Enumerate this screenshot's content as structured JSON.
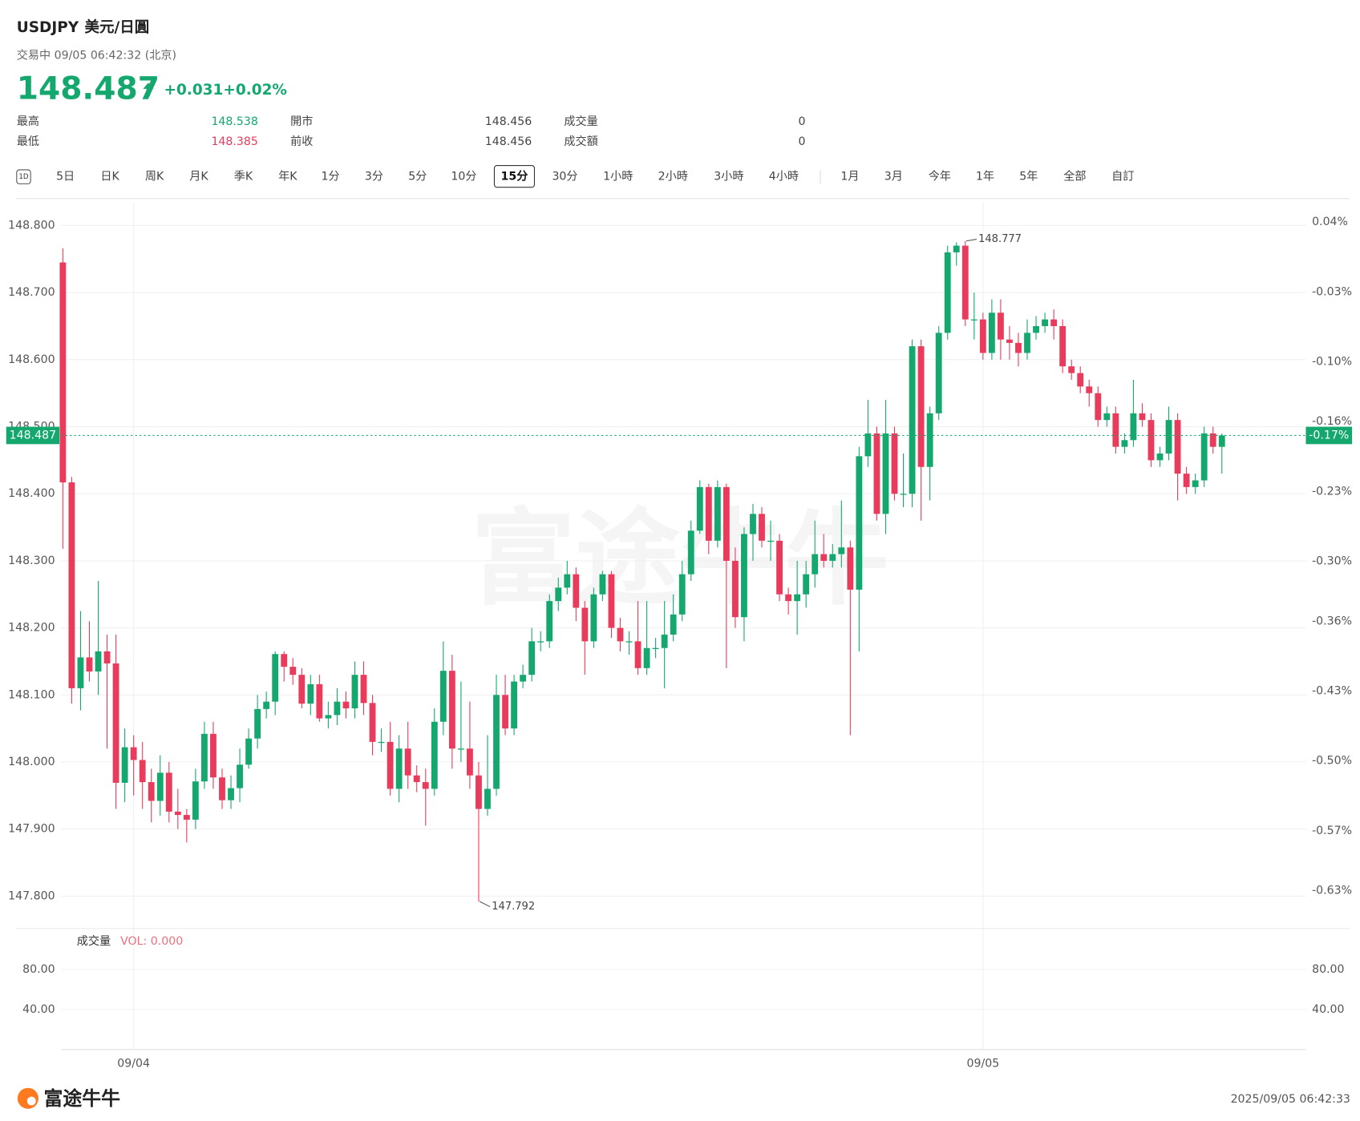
{
  "header": {
    "symbol": "USDJPY",
    "name": "美元/日圓",
    "status": "交易中 09/05 06:42:32 (北京)",
    "price": "148.487",
    "change": "+0.031",
    "change_pct": "+0.02%",
    "stats": [
      [
        {
          "label": "最高",
          "value": "148.538",
          "color": "#14a86f"
        },
        {
          "label": "開市",
          "value": "148.456"
        },
        {
          "label": "成交量",
          "value": "0"
        }
      ],
      [
        {
          "label": "最低",
          "value": "148.385",
          "color": "#e93b5b"
        },
        {
          "label": "前收",
          "value": "148.456"
        },
        {
          "label": "成交額",
          "value": "0"
        }
      ]
    ],
    "tabs": [
      "1D",
      "5日",
      "日K",
      "周K",
      "月K",
      "季K",
      "年K",
      "1分",
      "3分",
      "5分",
      "10分",
      "15分",
      "30分",
      "1小時",
      "2小時",
      "3小時",
      "4小時",
      "1月",
      "3月",
      "今年",
      "1年",
      "5年",
      "全部",
      "自訂"
    ],
    "selected_tab": 11,
    "watermark": "富途牛牛"
  },
  "chart_data": {
    "type": "candlestick",
    "up_color": "#14a86f",
    "down_color": "#e93b5b",
    "categories": [
      null,
      null,
      null,
      null,
      null,
      null,
      null,
      null,
      "09/04",
      null,
      null,
      null,
      null,
      null,
      null,
      null,
      null,
      null,
      null,
      null,
      null,
      null,
      null,
      null,
      null,
      null,
      null,
      null,
      null,
      null,
      null,
      null,
      null,
      null,
      null,
      null,
      null,
      null,
      null,
      null,
      null,
      null,
      null,
      null,
      null,
      null,
      null,
      null,
      null,
      null,
      null,
      null,
      null,
      null,
      null,
      null,
      null,
      null,
      null,
      null,
      null,
      null,
      null,
      null,
      null,
      null,
      null,
      null,
      null,
      null,
      null,
      null,
      null,
      null,
      null,
      null,
      null,
      null,
      null,
      null,
      null,
      null,
      null,
      null,
      null,
      null,
      null,
      null,
      null,
      null,
      null,
      null,
      null,
      null,
      null,
      null,
      null,
      null,
      null,
      null,
      null,
      null,
      null,
      null,
      "09/05",
      null,
      null,
      null,
      null,
      null,
      null,
      null,
      null,
      null,
      null,
      null,
      null,
      null,
      null,
      null,
      null,
      null,
      null,
      null,
      null,
      null,
      null,
      null,
      null,
      null,
      null,
      null
    ],
    "open": [
      148.745,
      148.417,
      148.11,
      148.156,
      148.135,
      148.165,
      148.147,
      147.969,
      148.022,
      148.003,
      147.97,
      147.942,
      147.984,
      147.926,
      147.921,
      147.914,
      147.971,
      148.042,
      147.977,
      147.943,
      147.961,
      147.996,
      148.035,
      148.079,
      148.09,
      148.161,
      148.142,
      148.13,
      148.087,
      148.116,
      148.065,
      148.07,
      148.09,
      148.08,
      148.13,
      148.088,
      148.03,
      148.03,
      147.96,
      148.02,
      147.98,
      147.97,
      147.96,
      148.06,
      148.136,
      148.02,
      148.02,
      147.98,
      147.93,
      147.96,
      148.1,
      148.05,
      148.12,
      148.13,
      148.18,
      148.18,
      148.24,
      148.26,
      148.28,
      148.23,
      148.18,
      148.25,
      148.28,
      148.2,
      148.18,
      148.18,
      148.14,
      148.17,
      148.17,
      148.19,
      148.22,
      148.28,
      148.345,
      148.41,
      148.33,
      148.41,
      148.3,
      148.216,
      148.34,
      148.37,
      148.33,
      148.33,
      148.25,
      148.24,
      148.25,
      148.28,
      148.31,
      148.3,
      148.31,
      148.32,
      148.257,
      148.456,
      148.49,
      148.37,
      148.49,
      148.4,
      148.4,
      148.62,
      148.44,
      148.52,
      148.64,
      148.76,
      148.77,
      148.66,
      148.66,
      148.61,
      148.67,
      148.63,
      148.625,
      148.61,
      148.64,
      148.65,
      148.66,
      148.65,
      148.59,
      148.58,
      148.56,
      148.55,
      148.51,
      148.52,
      148.47,
      148.48,
      148.52,
      148.51,
      148.45,
      148.46,
      148.51,
      148.43,
      148.41,
      148.42,
      148.49,
      148.47
    ],
    "high": [
      148.766,
      148.425,
      148.225,
      148.21,
      148.27,
      148.19,
      148.19,
      148.05,
      148.04,
      148.03,
      147.99,
      148.01,
      148.0,
      147.96,
      147.93,
      147.99,
      148.06,
      148.06,
      147.99,
      147.98,
      148.02,
      148.05,
      148.1,
      148.105,
      148.165,
      148.165,
      148.155,
      148.14,
      148.13,
      148.13,
      148.09,
      148.11,
      148.105,
      148.15,
      148.15,
      148.1,
      148.05,
      148.06,
      148.04,
      148.06,
      147.995,
      147.99,
      148.08,
      148.18,
      148.16,
      148.12,
      148.09,
      148.0,
      148.04,
      148.13,
      148.13,
      148.13,
      148.145,
      148.2,
      148.195,
      148.25,
      148.275,
      148.3,
      148.29,
      148.24,
      148.26,
      148.285,
      148.285,
      148.215,
      148.195,
      148.24,
      148.24,
      148.185,
      148.24,
      148.25,
      148.3,
      148.36,
      148.42,
      148.415,
      148.42,
      148.415,
      148.32,
      148.35,
      148.385,
      148.38,
      148.36,
      148.34,
      148.26,
      148.3,
      148.3,
      148.36,
      148.34,
      148.325,
      148.39,
      148.33,
      148.47,
      148.54,
      148.5,
      148.54,
      148.5,
      148.46,
      148.63,
      148.63,
      148.53,
      148.65,
      148.77,
      148.775,
      148.777,
      148.7,
      148.67,
      148.69,
      148.69,
      148.65,
      148.64,
      148.66,
      148.665,
      148.67,
      148.675,
      148.66,
      148.6,
      148.59,
      148.57,
      148.56,
      148.53,
      148.53,
      148.49,
      148.57,
      148.535,
      148.52,
      148.47,
      148.53,
      148.52,
      148.44,
      148.43,
      148.5,
      148.5,
      148.49
    ],
    "low": [
      148.318,
      148.087,
      148.077,
      148.12,
      148.1,
      148.02,
      147.93,
      147.94,
      147.95,
      147.93,
      147.91,
      147.92,
      147.91,
      147.9,
      147.88,
      147.9,
      147.96,
      147.96,
      147.93,
      147.93,
      147.94,
      147.99,
      148.02,
      148.065,
      148.07,
      148.12,
      148.115,
      148.08,
      148.07,
      148.06,
      148.05,
      148.055,
      148.065,
      148.065,
      148.07,
      148.01,
      148.015,
      147.95,
      147.94,
      147.96,
      147.955,
      147.905,
      147.95,
      148.04,
      147.99,
      148.0,
      147.96,
      147.792,
      147.92,
      147.95,
      148.04,
      148.04,
      148.11,
      148.12,
      148.165,
      148.17,
      148.225,
      148.25,
      148.21,
      148.13,
      148.17,
      148.24,
      148.185,
      148.165,
      148.16,
      148.13,
      148.13,
      148.155,
      148.11,
      148.18,
      148.21,
      148.27,
      148.34,
      148.31,
      148.32,
      148.14,
      148.2,
      148.18,
      148.3,
      148.32,
      148.3,
      148.24,
      148.22,
      148.19,
      148.23,
      148.26,
      148.29,
      148.29,
      148.29,
      148.04,
      148.165,
      148.44,
      148.36,
      148.34,
      148.39,
      148.38,
      148.38,
      148.36,
      148.39,
      148.51,
      148.63,
      148.74,
      148.65,
      148.63,
      148.6,
      148.6,
      148.6,
      148.6,
      148.59,
      148.6,
      148.63,
      148.64,
      148.63,
      148.58,
      148.57,
      148.55,
      148.53,
      148.5,
      148.5,
      148.46,
      148.46,
      148.47,
      148.5,
      148.44,
      148.44,
      148.45,
      148.39,
      148.4,
      148.4,
      148.41,
      148.46,
      148.43
    ],
    "close": [
      148.417,
      148.11,
      148.156,
      148.135,
      148.165,
      148.147,
      147.969,
      148.022,
      148.003,
      147.97,
      147.942,
      147.984,
      147.926,
      147.921,
      147.914,
      147.971,
      148.042,
      147.977,
      147.943,
      147.961,
      147.996,
      148.035,
      148.079,
      148.09,
      148.161,
      148.142,
      148.13,
      148.087,
      148.116,
      148.065,
      148.07,
      148.09,
      148.08,
      148.13,
      148.088,
      148.03,
      148.03,
      147.96,
      148.02,
      147.98,
      147.97,
      147.96,
      148.06,
      148.136,
      148.02,
      148.02,
      147.98,
      147.93,
      147.96,
      148.1,
      148.05,
      148.12,
      148.13,
      148.18,
      148.18,
      148.24,
      148.26,
      148.28,
      148.23,
      148.18,
      148.25,
      148.28,
      148.2,
      148.18,
      148.18,
      148.14,
      148.17,
      148.17,
      148.19,
      148.22,
      148.28,
      148.345,
      148.41,
      148.33,
      148.41,
      148.3,
      148.216,
      148.34,
      148.37,
      148.33,
      148.33,
      148.25,
      148.24,
      148.25,
      148.28,
      148.31,
      148.3,
      148.31,
      148.32,
      148.257,
      148.456,
      148.49,
      148.37,
      148.49,
      148.4,
      148.4,
      148.62,
      148.44,
      148.52,
      148.64,
      148.76,
      148.77,
      148.66,
      148.66,
      148.61,
      148.67,
      148.63,
      148.625,
      148.61,
      148.64,
      148.65,
      148.66,
      148.65,
      148.59,
      148.58,
      148.56,
      148.55,
      148.51,
      148.52,
      148.47,
      148.48,
      148.52,
      148.51,
      148.45,
      148.46,
      148.51,
      148.43,
      148.41,
      148.42,
      148.49,
      148.47,
      148.487
    ],
    "ylim": [
      147.753,
      148.835
    ],
    "yticks": [
      {
        "value": 148.8,
        "label": "148.800"
      },
      {
        "value": 148.7,
        "label": "148.700"
      },
      {
        "value": 148.6,
        "label": "148.600"
      },
      {
        "value": 148.5,
        "label": "148.500"
      },
      {
        "value": 148.4,
        "label": "148.400"
      },
      {
        "value": 148.3,
        "label": "148.300"
      },
      {
        "value": 148.2,
        "label": "148.200"
      },
      {
        "value": 148.1,
        "label": "148.100"
      },
      {
        "value": 148.0,
        "label": "148.000"
      },
      {
        "value": 147.9,
        "label": "147.900"
      },
      {
        "value": 147.8,
        "label": "147.800"
      }
    ],
    "y2lim": [
      -0.667,
      0.06
    ],
    "y2ticks": [
      {
        "value": 0.04,
        "label": "0.04%"
      },
      {
        "value": -0.03,
        "label": "-0.03%"
      },
      {
        "value": -0.1,
        "label": "-0.10%"
      },
      {
        "value": -0.16,
        "label": "-0.16%"
      },
      {
        "value": -0.23,
        "label": "-0.23%"
      },
      {
        "value": -0.3,
        "label": "-0.30%"
      },
      {
        "value": -0.36,
        "label": "-0.36%"
      },
      {
        "value": -0.43,
        "label": "-0.43%"
      },
      {
        "value": -0.5,
        "label": "-0.50%"
      },
      {
        "value": -0.57,
        "label": "-0.57%"
      },
      {
        "value": -0.63,
        "label": "-0.63%"
      }
    ],
    "grid": true,
    "last_price": 148.487,
    "last_pct_label": "-0.17%",
    "annotations": [
      {
        "index": 102,
        "value": 148.777
      },
      {
        "index": 47,
        "value": 147.792
      }
    ],
    "volume": {
      "title": "成交量",
      "value_label": "VOL: 0.000",
      "ylim": [
        0,
        120
      ],
      "yticks": [
        {
          "value": 80,
          "label": "80.00"
        },
        {
          "value": 40,
          "label": "40.00"
        }
      ]
    }
  },
  "footer": {
    "logo": "富途牛牛",
    "timestamp": "2025/09/05 06:42:33"
  }
}
